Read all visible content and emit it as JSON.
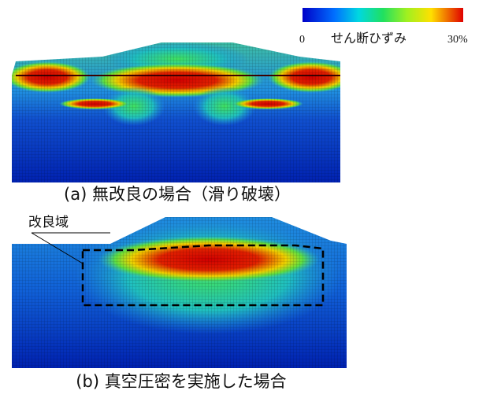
{
  "colorbar": {
    "min_label": "0",
    "title": "せん断ひずみ",
    "max_label": "30%"
  },
  "panels": [
    {
      "caption": "(a) 無改良の場合（滑り破壊）"
    },
    {
      "caption": "(b) 真空圧密を実施した場合",
      "annotation": "改良域"
    }
  ]
}
